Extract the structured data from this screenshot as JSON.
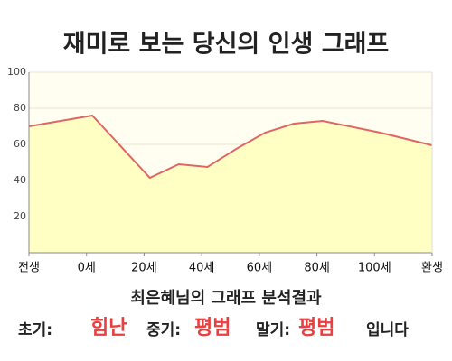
{
  "chart_data": {
    "type": "area",
    "title": "재미로 보는 당신의 인생 그래프",
    "x": [
      -20,
      2,
      22,
      32,
      42,
      52,
      62,
      72,
      82,
      102,
      120
    ],
    "values": [
      70,
      76,
      41.5,
      49,
      47.5,
      57.5,
      66.5,
      71.5,
      73,
      66.5,
      59.5
    ],
    "color": "#e06666",
    "fill": "#ffffc4",
    "xlim": [
      -20,
      120
    ],
    "xticks": [
      {
        "value": -20,
        "label": "전생"
      },
      {
        "value": 0,
        "label": "0세"
      },
      {
        "value": 20,
        "label": "20세"
      },
      {
        "value": 40,
        "label": "40세"
      },
      {
        "value": 60,
        "label": "60세"
      },
      {
        "value": 80,
        "label": "80세"
      },
      {
        "value": 100,
        "label": "100세"
      },
      {
        "value": 120,
        "label": "환생"
      }
    ],
    "ylim": [
      0,
      100
    ],
    "yticks": [
      20,
      40,
      60,
      80,
      100
    ],
    "grid": true
  },
  "result": {
    "heading": "최은혜님의 그래프 분석결과",
    "items": [
      {
        "label": "초기:",
        "value": "힘난"
      },
      {
        "label": "중기:",
        "value": "평범"
      },
      {
        "label": "말기:",
        "value": "평범"
      }
    ],
    "suffix": "입니다"
  }
}
